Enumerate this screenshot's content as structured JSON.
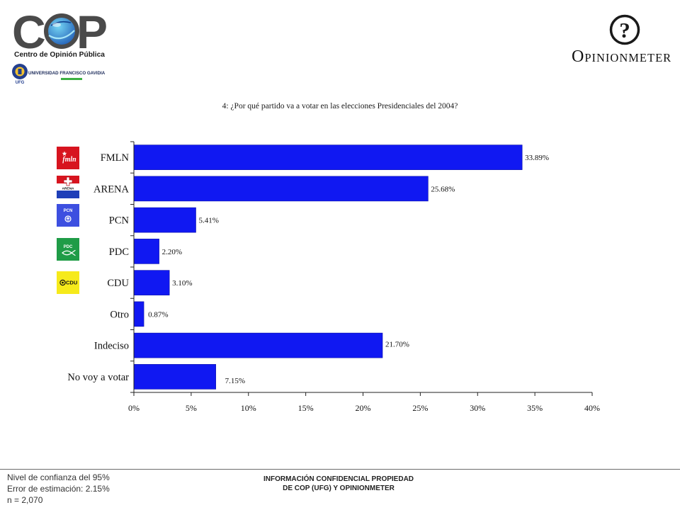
{
  "header": {
    "cop_logo": {
      "letter_left": "C",
      "letter_right": "P",
      "subtitle": "Centro de Opinión Pública",
      "globe_colors": [
        "#1d57b3",
        "#74d4f3"
      ]
    },
    "ufg_logo": {
      "abbr": "UFG",
      "name": "UNIVERSIDAD FRANCISCO GAVIDIA",
      "accent_color": "#3cb043"
    },
    "opinionmeter_logo": {
      "mark": "?",
      "name": "OPINIONMETER"
    }
  },
  "party_logos": [
    {
      "label": "fmln",
      "icon": "star-icon",
      "color": "#d7141f"
    },
    {
      "label": "ARENA",
      "icon": "cross-icon",
      "colors": [
        "#d7141f",
        "#ffffff",
        "#1f3fb8"
      ]
    },
    {
      "label": "PCN",
      "icon": "emblem-icon",
      "color": "#3d4fe0"
    },
    {
      "label": "PDC",
      "icon": "fish-icon",
      "color": "#1f9c47"
    },
    {
      "label": "CDU",
      "icon": "target-icon",
      "color": "#f6ea1b"
    }
  ],
  "chart_data": {
    "type": "bar",
    "orientation": "horizontal",
    "title": "4: ¿Por qué partido va a votar en las elecciones Presidenciales del 2004?",
    "categories": [
      "FMLN",
      "ARENA",
      "PCN",
      "PDC",
      "CDU",
      "Otro",
      "Indeciso",
      "No voy a votar"
    ],
    "values": [
      33.89,
      25.68,
      5.41,
      2.2,
      3.1,
      0.87,
      21.7,
      7.15
    ],
    "value_labels": [
      "33.89%",
      "25.68%",
      "5.41%",
      "2.20%",
      "3.10%",
      "0.87%",
      "21.70%",
      "7.15%"
    ],
    "xlim": [
      0,
      40
    ],
    "x_tick_labels": [
      "0%",
      "5%",
      "10%",
      "15%",
      "20%",
      "25%",
      "30%",
      "35%",
      "40%"
    ],
    "xlabel": "",
    "ylabel": "",
    "grid": false,
    "legend": "none",
    "bar_color": "#1018f2"
  },
  "footer": {
    "stats": [
      "Nivel de confianza del 95%",
      "Error de estimación: 2.15%",
      "n = 2,070"
    ],
    "confidential": [
      "INFORMACIÓN CONFIDENCIAL PROPIEDAD",
      "DE COP (UFG) Y OPINIONMETER"
    ]
  }
}
